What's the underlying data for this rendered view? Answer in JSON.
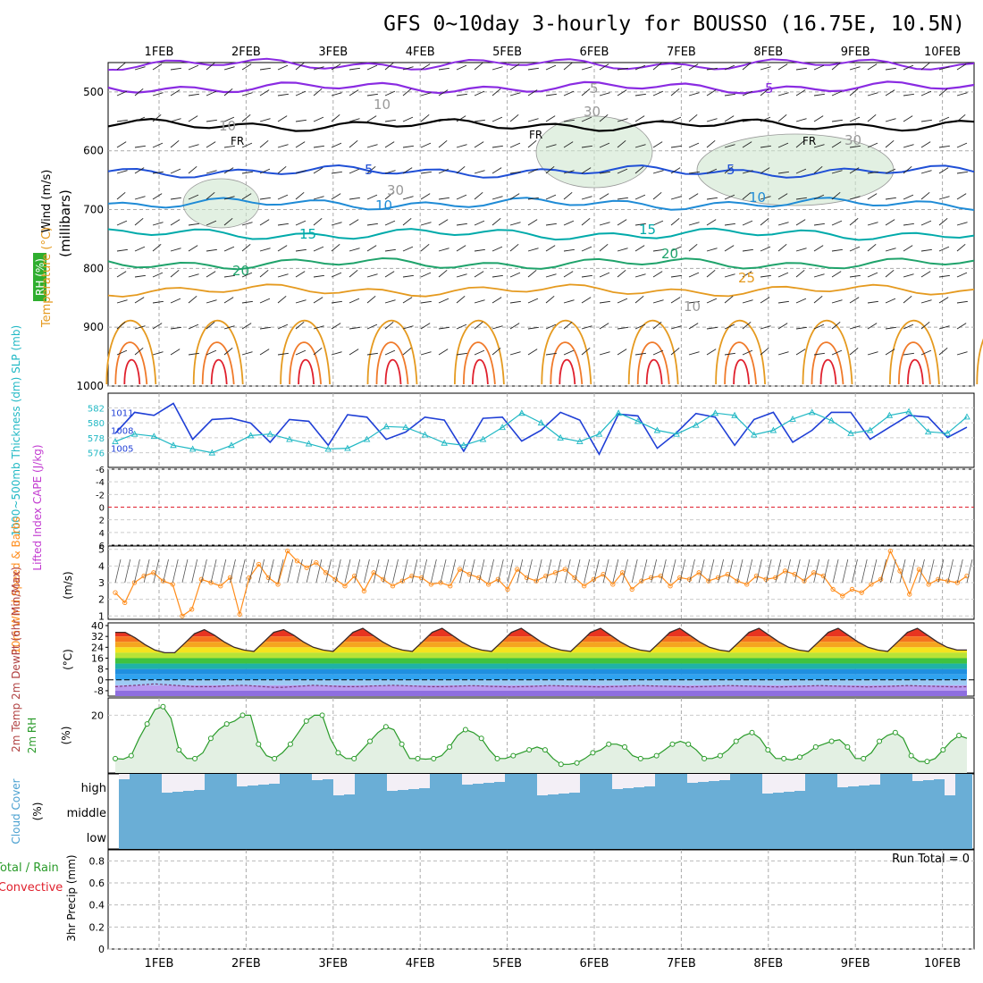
{
  "title": "GFS 0~10day 3-hourly for BOUSSO (16.75E, 10.5N)",
  "dates": [
    "1FEB",
    "2FEB",
    "3FEB",
    "4FEB",
    "5FEB",
    "6FEB",
    "7FEB",
    "8FEB",
    "9FEB",
    "10FEB"
  ],
  "colors": {
    "purple": "#8a2be2",
    "black": "#000000",
    "blue": "#1f4fd6",
    "cyan": "#00aaaa",
    "green": "#1fa36b",
    "orange": "#e59a1f",
    "red": "#e0202d",
    "wind": "#ff8c1a",
    "slp": "#1f3fd6",
    "thick": "#20b8c4",
    "rh": "#2a9b2a",
    "cloud": "#6aaed6",
    "grid": "#888888"
  },
  "panels": {
    "upper_air": {
      "ylabel_wind": "Wind (m/s)",
      "ylabel_temp": "Temperature (°C)",
      "ylabel_rh": "RH (%)",
      "ylabel_units": "(millibars)",
      "yticks": [
        "500",
        "600",
        "700",
        "800",
        "900",
        "1000"
      ],
      "contour_labels": [
        "5",
        "5",
        "FR",
        "FR",
        "FR",
        "5",
        "5",
        "10",
        "10",
        "15",
        "15",
        "20",
        "20",
        "25",
        "10",
        "10",
        "30",
        "30",
        "30",
        "10"
      ]
    },
    "slp": {
      "ylabel": "1000~500mb Thickness (dm) SLP (mb)",
      "left_ticks": [
        "582",
        "580",
        "578",
        "576"
      ],
      "right_ticks": [
        "1011",
        "1008",
        "1005"
      ]
    },
    "cape": {
      "ylabel": "Lifted Index CAPE (J/kg)",
      "yticks": [
        "-6",
        "-4",
        "-2",
        "0",
        "2",
        "4",
        "6"
      ]
    },
    "wind10m": {
      "ylabel": "10m Wind Speed & Barbs",
      "units": "(m/s)",
      "yticks": [
        "1",
        "2",
        "3",
        "4",
        "5"
      ]
    },
    "temp2m": {
      "ylabel": "2m Temp 2m DewPt (6hr Min/Max)",
      "units": "(°C)",
      "yticks": [
        "40",
        "32",
        "24",
        "16",
        "8",
        "0",
        "-8"
      ]
    },
    "rh2m": {
      "ylabel": "2m RH",
      "units": "(%)",
      "yticks": [
        "20"
      ]
    },
    "cloud": {
      "ylabel": "Cloud Cover",
      "units": "(%)",
      "levels": [
        "high",
        "middle",
        "low"
      ]
    },
    "precip": {
      "ylabel": "3hr Precip (mm)",
      "legend": "Total / Rain Convective",
      "run_total": "Run Total = 0",
      "yticks": [
        "0.8",
        "0.6",
        "0.4",
        "0.2",
        "0"
      ]
    }
  },
  "chart_data": [
    {
      "type": "line",
      "title": "Wind, Temperature, RH",
      "ylabel": "millibars",
      "ylim": [
        1000,
        450
      ],
      "yticks": [
        500,
        600,
        700,
        800,
        900,
        1000
      ],
      "series": [
        {
          "name": "Temperature",
          "values": []
        }
      ]
    },
    {
      "type": "line",
      "title": "1000~500mb Thickness (dm) SLP (mb)",
      "series": [
        {
          "name": "SLP (mb)",
          "values": [
            1007.5,
            1011,
            1010.5,
            1012.5,
            1006.5,
            1009.8,
            1010,
            1009.2,
            1006,
            1009.8,
            1009.5,
            1005.5,
            1010.6,
            1010.2,
            1006.5,
            1007.7,
            1010.2,
            1009.7,
            1004.5,
            1010,
            1010.2,
            1006.2,
            1008,
            1011,
            1009.7,
            1004,
            1010.7,
            1010.4,
            1005,
            1007.6,
            1010.8,
            1010.2,
            1005.5,
            1009.8,
            1011,
            1006,
            1008,
            1011,
            1011,
            1006.5,
            1008.5,
            1010.5,
            1010.2,
            1006.8,
            1008.5
          ]
        },
        {
          "name": "Thickness (dm)",
          "values": [
            577.5,
            578.5,
            578.2,
            577,
            576.5,
            576,
            577,
            578.3,
            578.5,
            577.8,
            577.2,
            576.5,
            576.6,
            577.8,
            579.5,
            579.4,
            578.4,
            577.3,
            577,
            577.8,
            579.4,
            581.3,
            580,
            578,
            577.5,
            578.5,
            581.3,
            580.2,
            579,
            578.5,
            579.7,
            581.3,
            581,
            578.4,
            579,
            580.5,
            581.4,
            580.3,
            578.6,
            579,
            581,
            581.5,
            578.8,
            578.6,
            580.8
          ]
        }
      ]
    },
    {
      "type": "line",
      "title": "Lifted Index CAPE (J/kg)",
      "ylim": [
        6,
        -6
      ],
      "series": [
        {
          "name": "Lifted Index",
          "values": []
        }
      ]
    },
    {
      "type": "line",
      "title": "10m Wind Speed",
      "ylim": [
        0.8,
        5.2
      ],
      "series": [
        {
          "name": "Speed",
          "values": [
            2.4,
            1.8,
            3,
            3.4,
            3.6,
            3.1,
            2.9,
            1,
            1.4,
            3.2,
            3,
            2.8,
            3.3,
            1.1,
            3.3,
            4.1,
            3.3,
            2.9,
            4.9,
            4.3,
            3.9,
            4.2,
            3.6,
            3.2,
            2.8,
            3.4,
            2.5,
            3.6,
            3.2,
            2.8,
            3.1,
            3.4,
            3.3,
            2.9,
            3,
            2.8,
            3.8,
            3.5,
            3.3,
            2.9,
            3.2,
            2.6,
            3.8,
            3.3,
            3.1,
            3.4,
            3.6,
            3.8,
            3.3,
            2.8,
            3.2,
            3.5,
            2.9,
            3.6,
            2.6,
            3.1,
            3.3,
            3.4,
            2.8,
            3.3,
            3.2,
            3.6,
            3.1,
            3.3,
            3.5,
            3.1,
            2.9,
            3.4,
            3.2,
            3.3,
            3.7,
            3.5,
            3.1,
            3.6,
            3.4,
            2.6,
            2.2,
            2.6,
            2.4,
            2.9,
            3.2,
            4.9,
            3.7,
            2.3,
            3.8,
            2.9,
            3.2,
            3.1,
            3,
            3.4
          ]
        }
      ]
    },
    {
      "type": "area",
      "title": "2m Temp",
      "ylim": [
        -12,
        42
      ],
      "yticks": [
        40,
        32,
        24,
        16,
        8,
        0,
        -8
      ],
      "series": [
        {
          "name": "2m Temp",
          "values": [
            35,
            35,
            31,
            26,
            22,
            20,
            20,
            27,
            34,
            37,
            33,
            28,
            24,
            22,
            21,
            28,
            35,
            37,
            33,
            28,
            24,
            22,
            21,
            28,
            35,
            38,
            33,
            28,
            24,
            22,
            21,
            28,
            35,
            38,
            33,
            28,
            24,
            22,
            21,
            28,
            35,
            38,
            33,
            28,
            24,
            22,
            21,
            28,
            35,
            38,
            33,
            28,
            24,
            22,
            21,
            28,
            35,
            38,
            33,
            28,
            24,
            22,
            21,
            28,
            35,
            38,
            33,
            28,
            24,
            22,
            21,
            28,
            35,
            38,
            33,
            28,
            24,
            22,
            21,
            28,
            35,
            38,
            33,
            28,
            24,
            22,
            22
          ]
        },
        {
          "name": "2m DewPt",
          "values": [
            -5,
            -4.5,
            -4,
            -3.5,
            -3,
            -3.5,
            -4,
            -4.5,
            -5,
            -5,
            -5,
            -4.5,
            -4.2,
            -4,
            -4.5,
            -5,
            -5.5,
            -5.5,
            -5,
            -4.5,
            -4,
            -4.3,
            -4.6,
            -5,
            -5,
            -4.8,
            -4.5,
            -4.3,
            -4,
            -4.2,
            -4.5,
            -4.8,
            -5,
            -5,
            -4.8,
            -4.5,
            -4.3,
            -4.5,
            -4.8,
            -5,
            -5.2,
            -5,
            -4.8,
            -4.5,
            -4.2,
            -4.4,
            -4.6,
            -4.8,
            -5,
            -5.2,
            -5,
            -4.8,
            -4.5,
            -4.2,
            -4.4,
            -4.6,
            -4.8,
            -5,
            -5.2,
            -5,
            -4.8,
            -4.5,
            -4.2,
            -4.4,
            -4.6,
            -4.8,
            -5,
            -5.2,
            -5,
            -4.8,
            -4.5,
            -4.2,
            -4.4,
            -4.6,
            -4.8,
            -5,
            -5.2,
            -5,
            -4.8,
            -4.5,
            -4.2,
            -4.4,
            -4.6,
            -4.8,
            -5,
            -5.2,
            -5
          ]
        }
      ]
    },
    {
      "type": "area",
      "title": "2m RH",
      "ylim": [
        0,
        26
      ],
      "yticks": [
        20
      ],
      "series": [
        {
          "name": "2m RH",
          "values": [
            5,
            4.8,
            6,
            12,
            17,
            22,
            23,
            19,
            8,
            5,
            5,
            7,
            12,
            15,
            17,
            18,
            20,
            20,
            10,
            6,
            5,
            7,
            10,
            14,
            18,
            20,
            20,
            12,
            7,
            5,
            5,
            8,
            11,
            14,
            16,
            15,
            10,
            5,
            5,
            4.8,
            5,
            6,
            9,
            13,
            15,
            14,
            12,
            8,
            5,
            5,
            6,
            7,
            8,
            9,
            8,
            5,
            3,
            3,
            3.5,
            5,
            7,
            8,
            10,
            10,
            9,
            6,
            5,
            5,
            6,
            8,
            10,
            11,
            10,
            8,
            5,
            5,
            6,
            8,
            11,
            13,
            14,
            12,
            8,
            5,
            5,
            4.5,
            5.5,
            7,
            9,
            10,
            11,
            11.5,
            9,
            5,
            5,
            7,
            11,
            13,
            14,
            12,
            6,
            4,
            4,
            5,
            8,
            11,
            13,
            12
          ]
        }
      ]
    },
    {
      "type": "bar",
      "title": "Cloud Cover",
      "series": [
        {
          "name": "high",
          "values": []
        }
      ]
    },
    {
      "type": "bar",
      "title": "3hr Precip (mm)",
      "ylim": [
        0,
        0.9
      ],
      "yticks": [
        0,
        0.2,
        0.4,
        0.6,
        0.8
      ],
      "series": [
        {
          "name": "Total / Rain",
          "values": []
        }
      ]
    }
  ]
}
